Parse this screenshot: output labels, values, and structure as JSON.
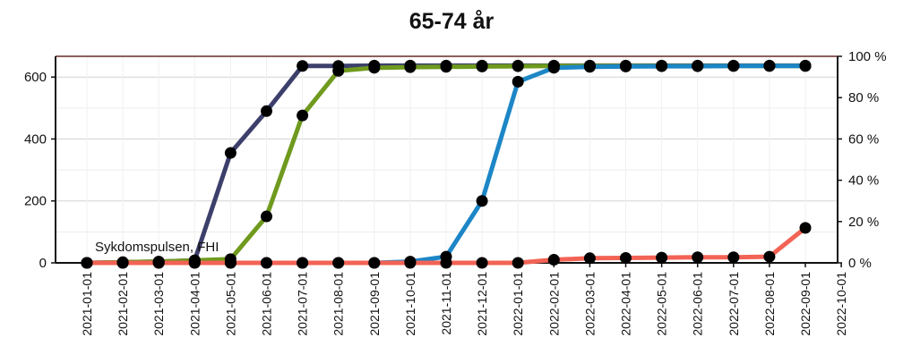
{
  "chart_data": {
    "type": "line",
    "title": "65-74 år",
    "credit": "Sykdomspulsen, FHI",
    "x": [
      "2021-01-01",
      "2021-02-01",
      "2021-03-01",
      "2021-04-01",
      "2021-05-01",
      "2021-06-01",
      "2021-07-01",
      "2021-08-01",
      "2021-09-01",
      "2021-10-01",
      "2021-11-01",
      "2021-12-01",
      "2022-01-01",
      "2022-02-01",
      "2022-03-01",
      "2022-04-01",
      "2022-05-01",
      "2022-06-01",
      "2022-07-01",
      "2022-08-01",
      "2022-09-01"
    ],
    "x_ticks": [
      "2021-01-01",
      "2021-02-01",
      "2021-03-01",
      "2021-04-01",
      "2021-05-01",
      "2021-06-01",
      "2021-07-01",
      "2021-08-01",
      "2021-09-01",
      "2021-10-01",
      "2021-11-01",
      "2021-12-01",
      "2022-01-01",
      "2022-02-01",
      "2022-03-01",
      "2022-04-01",
      "2022-05-01",
      "2022-06-01",
      "2022-07-01",
      "2022-08-01",
      "2022-09-01",
      "2022-10-01"
    ],
    "ylim_left": [
      0,
      667
    ],
    "yticks_left": [
      0,
      200,
      400,
      600
    ],
    "ylim_right": [
      0,
      100
    ],
    "yticks_right": [
      "0 %",
      "20 %",
      "40 %",
      "60 %",
      "80 %",
      "100 %"
    ],
    "grid": true,
    "series": [
      {
        "color": "#3d3f6b",
        "values": [
          0,
          2,
          4,
          8,
          355,
          490,
          636,
          636,
          637,
          637,
          637,
          637,
          637,
          637,
          637,
          637,
          637,
          637,
          637,
          637,
          637
        ]
      },
      {
        "color": "#6f9a1e",
        "values": [
          0,
          2,
          4,
          8,
          12,
          150,
          476,
          620,
          630,
          632,
          633,
          634,
          635,
          636,
          636,
          636,
          636,
          636,
          636,
          636,
          636
        ]
      },
      {
        "color": "#1c86c6",
        "values": [
          0,
          0,
          0,
          0,
          0,
          0,
          0,
          0,
          0,
          4,
          20,
          200,
          585,
          630,
          633,
          634,
          635,
          635,
          636,
          636,
          636
        ]
      },
      {
        "color": "#f26355",
        "values": [
          0,
          0,
          0,
          0,
          0,
          0,
          0,
          0,
          0,
          0,
          0,
          0,
          0,
          10,
          15,
          16,
          17,
          18,
          18,
          20,
          113
        ]
      }
    ]
  }
}
